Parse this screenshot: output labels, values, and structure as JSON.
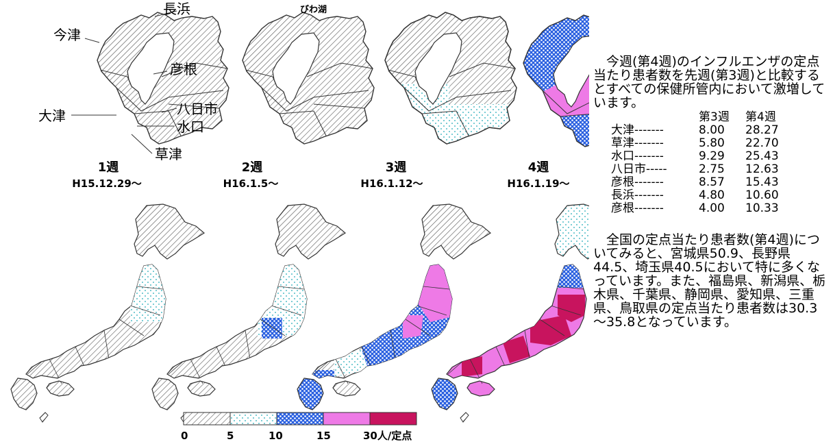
{
  "legend_colors": {
    "band_0_5": "#ffffff",
    "band_5_10": "#ffffff",
    "band_10_15": "#2a60e0",
    "band_15_30": "#ee7ae6",
    "band_30_plus": "#c8145e"
  },
  "shiga_labels": {
    "nagahama": "長浜",
    "imazu": "今津",
    "hikone": "彦根",
    "otsu": "大津",
    "yokaichi": "八日市",
    "minakuchi": "水口",
    "kusatsu": "草津",
    "lake": "びわ湖"
  },
  "weeks": [
    {
      "label": "1週",
      "date": "H15.12.29〜"
    },
    {
      "label": "2週",
      "date": "H16.1.5〜"
    },
    {
      "label": "3週",
      "date": "H16.1.12〜"
    },
    {
      "label": "4週",
      "date": "H16.1.19〜"
    }
  ],
  "legend": {
    "ticks": [
      "0",
      "5",
      "10",
      "15",
      "30人/定点"
    ]
  },
  "side": {
    "intro": "今週(第4週)のインフルエンザの定点当たり患者数を先週(第3週)と比較するとすべての保健所管内において激増しています。",
    "col3": "第3週",
    "col4": "第4週",
    "rows": [
      {
        "name": "大津-------",
        "w3": "8.00",
        "w4": "28.27"
      },
      {
        "name": "草津-------",
        "w3": "5.80",
        "w4": "22.70"
      },
      {
        "name": "水口-------",
        "w3": "9.29",
        "w4": "25.43"
      },
      {
        "name": "八日市-----",
        "w3": "2.75",
        "w4": "12.63"
      },
      {
        "name": "彦根-------",
        "w3": "8.57",
        "w4": "15.43"
      },
      {
        "name": "長浜-------",
        "w3": "4.80",
        "w4": "10.60"
      },
      {
        "name": "彦根-------",
        "w3": "4.00",
        "w4": "10.33"
      }
    ],
    "national": "全国の定点当たり患者数(第4週)についてみると、宮城県50.9、長野県44.5、埼玉県40.5において特に多くなっています。また、福島県、新潟県、栃木県、千葉県、静岡県、愛知県、三重県、鳥取県の定点当たり患者数は30.3～35.8となっています。"
  }
}
